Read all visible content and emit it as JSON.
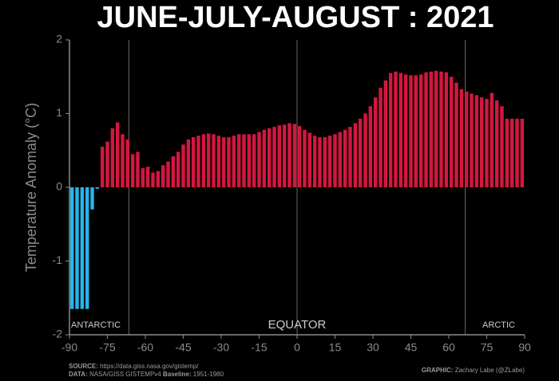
{
  "chart_data": {
    "type": "bar",
    "title": "JUNE-JULY-AUGUST : 2021",
    "y_label": "Temperature Anomaly (°C)",
    "x": [
      -89,
      -87,
      -85,
      -83,
      -81,
      -79,
      -77,
      -75,
      -73,
      -71,
      -69,
      -67,
      -65,
      -63,
      -61,
      -59,
      -57,
      -55,
      -53,
      -51,
      -49,
      -47,
      -45,
      -43,
      -41,
      -39,
      -37,
      -35,
      -33,
      -31,
      -29,
      -27,
      -25,
      -23,
      -21,
      -19,
      -17,
      -15,
      -13,
      -11,
      -9,
      -7,
      -5,
      -3,
      -1,
      1,
      3,
      5,
      7,
      9,
      11,
      13,
      15,
      17,
      19,
      21,
      23,
      25,
      27,
      29,
      31,
      33,
      35,
      37,
      39,
      41,
      43,
      45,
      47,
      49,
      51,
      53,
      55,
      57,
      59,
      61,
      63,
      65,
      67,
      69,
      71,
      73,
      75,
      77,
      79,
      81,
      83,
      85,
      87,
      89
    ],
    "values": [
      -1.65,
      -1.65,
      -1.65,
      -1.65,
      -0.3,
      -0.02,
      0.55,
      0.62,
      0.8,
      0.88,
      0.72,
      0.65,
      0.45,
      0.48,
      0.26,
      0.28,
      0.2,
      0.22,
      0.3,
      0.35,
      0.42,
      0.48,
      0.58,
      0.65,
      0.68,
      0.7,
      0.72,
      0.73,
      0.72,
      0.7,
      0.68,
      0.68,
      0.7,
      0.72,
      0.72,
      0.72,
      0.72,
      0.75,
      0.78,
      0.8,
      0.82,
      0.84,
      0.85,
      0.87,
      0.86,
      0.83,
      0.78,
      0.74,
      0.7,
      0.68,
      0.68,
      0.7,
      0.72,
      0.75,
      0.78,
      0.82,
      0.87,
      0.93,
      1.0,
      1.1,
      1.22,
      1.35,
      1.45,
      1.55,
      1.57,
      1.55,
      1.53,
      1.52,
      1.52,
      1.53,
      1.56,
      1.57,
      1.58,
      1.57,
      1.56,
      1.5,
      1.42,
      1.33,
      1.3,
      1.27,
      1.25,
      1.22,
      1.2,
      1.28,
      1.18,
      1.1,
      0.93,
      0.93,
      0.93,
      0.93
    ],
    "color": "#d3173f",
    "negative_color": "#27b5ea",
    "xlim": [
      -90,
      90
    ],
    "xticks": [
      -90,
      -75,
      -60,
      -45,
      -30,
      -15,
      0,
      15,
      30,
      45,
      60,
      75,
      90
    ],
    "ylim": [
      -2,
      2
    ],
    "yticks": [
      -2,
      -1,
      0,
      1,
      2
    ],
    "reference_lines": [
      -66.5,
      0,
      66.5
    ],
    "annotations": [
      "ANTARCTIC",
      "EQUATOR",
      "ARCTIC"
    ],
    "footer": {
      "source_label": "SOURCE:",
      "source": "https://data.giss.nasa.gov/gistemp/",
      "data_label": "DATA:",
      "data": "NASA/GISS GISTEMPv4",
      "baseline_label": "Baseline:",
      "baseline": "1951-1980",
      "graphic_label": "GRAPHIC:",
      "graphic": "Zachary Labe (@ZLabe)"
    }
  }
}
